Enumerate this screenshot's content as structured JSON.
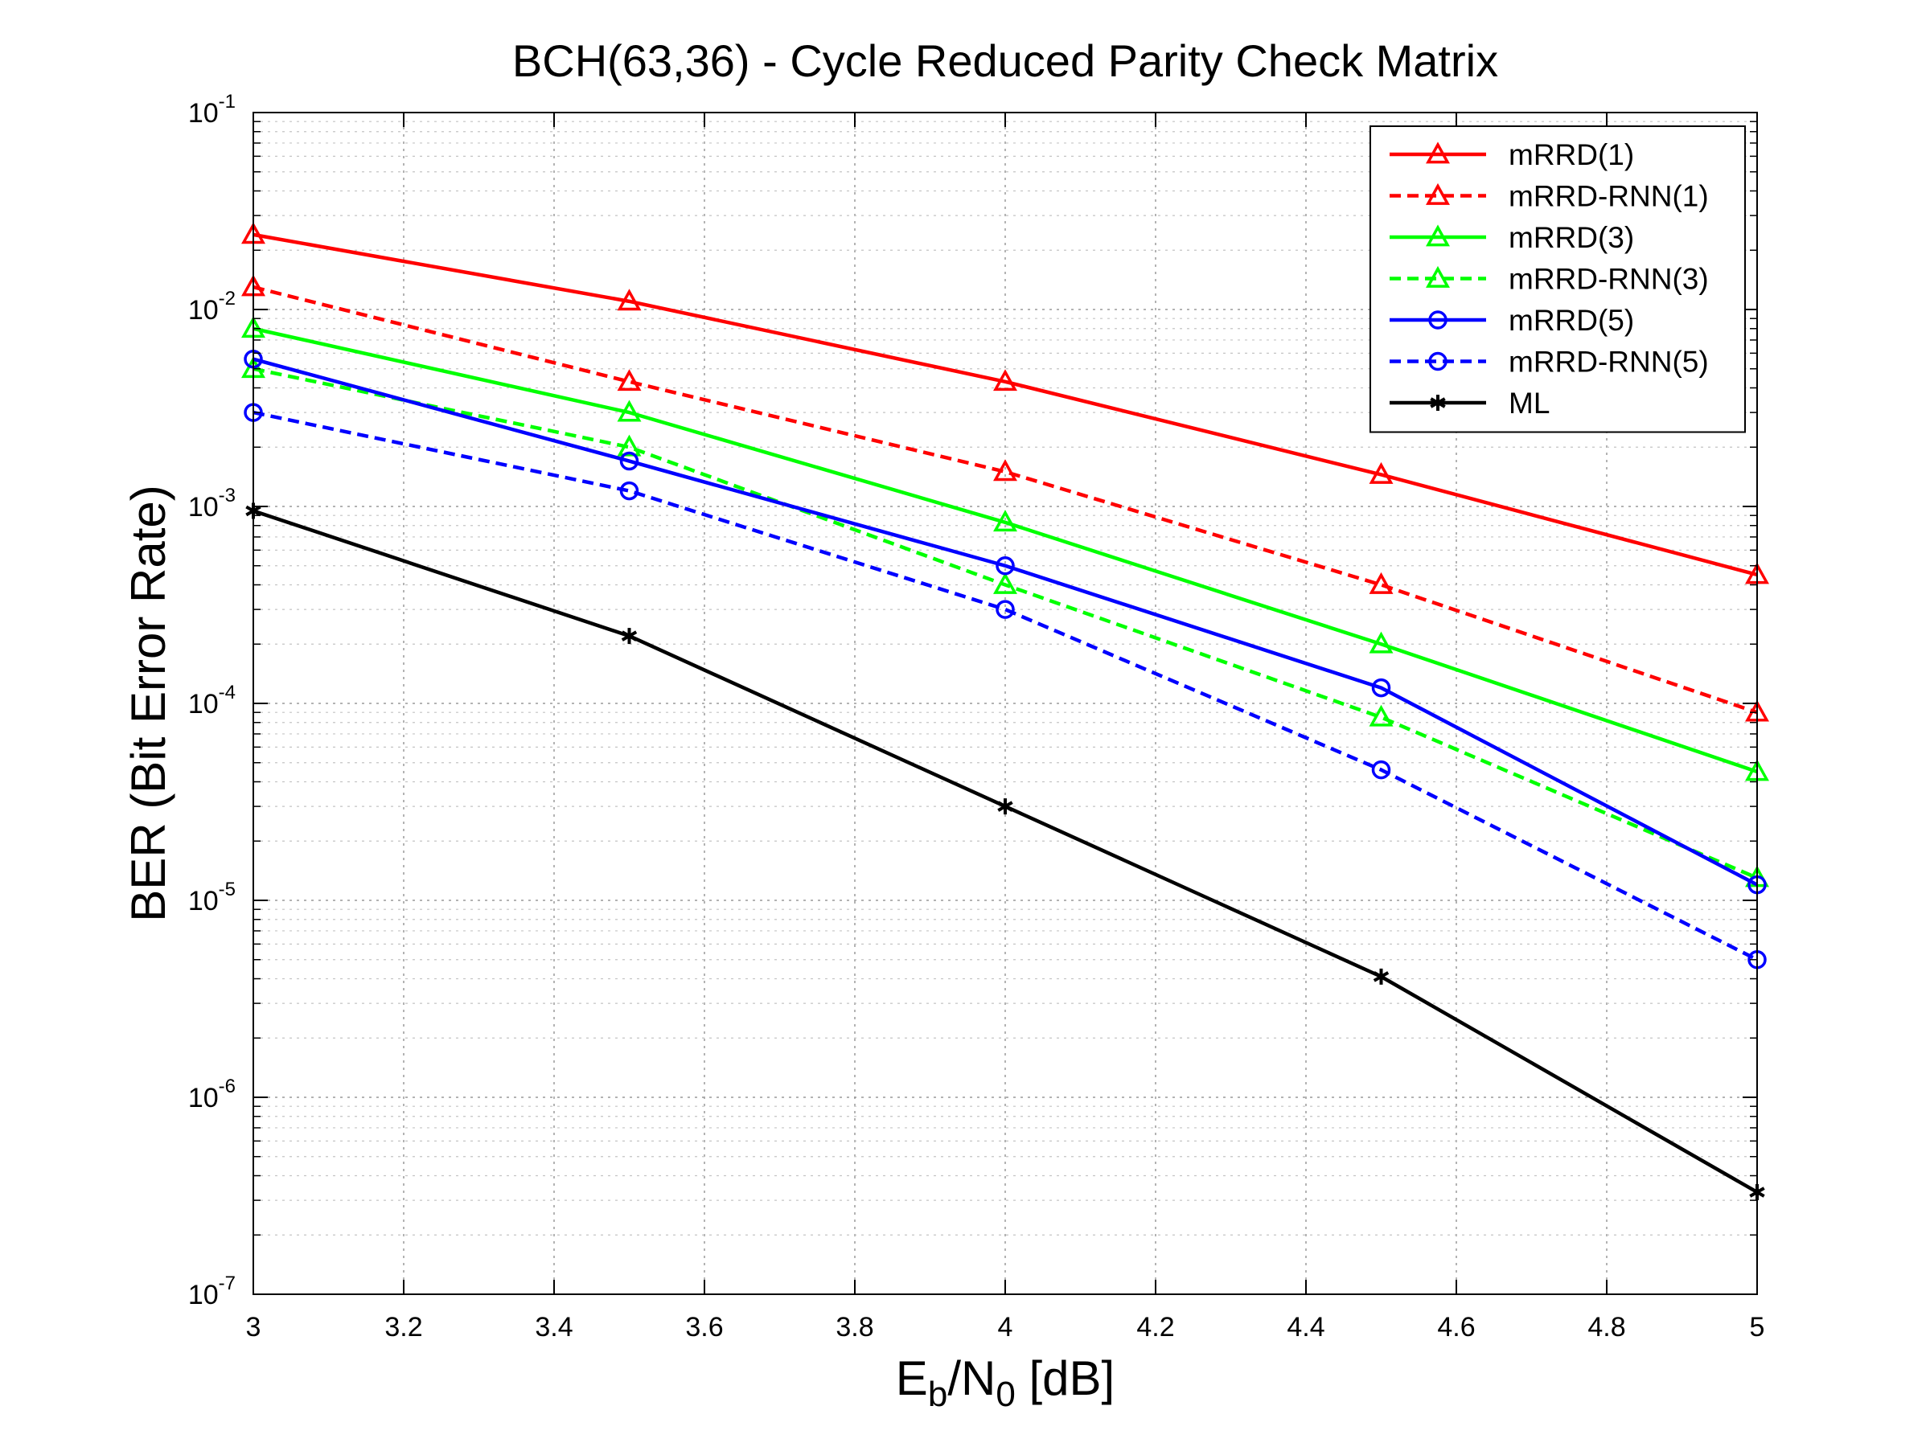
{
  "chart_data": {
    "type": "line",
    "title": "BCH(63,36) - Cycle Reduced Parity Check Matrix",
    "xlabel": "E_b/N_0 [dB]",
    "xlabel_parts": {
      "E": "E",
      "b": "b",
      "slash": "/N",
      "zero": "0",
      "rest": " [dB]"
    },
    "ylabel": "BER (Bit Error Rate)",
    "xlim": [
      3,
      5
    ],
    "ylim": [
      1e-07,
      0.1
    ],
    "yscale": "log",
    "grid": true,
    "legend_position": "top-right",
    "x_ticks": [
      "3",
      "3.2",
      "3.4",
      "3.6",
      "3.8",
      "4",
      "4.2",
      "4.4",
      "4.6",
      "4.8",
      "5"
    ],
    "y_ticks": [
      {
        "base": "10",
        "exp": "-7"
      },
      {
        "base": "10",
        "exp": "-6"
      },
      {
        "base": "10",
        "exp": "-5"
      },
      {
        "base": "10",
        "exp": "-4"
      },
      {
        "base": "10",
        "exp": "-3"
      },
      {
        "base": "10",
        "exp": "-2"
      },
      {
        "base": "10",
        "exp": "-1"
      }
    ],
    "x": [
      3,
      3.5,
      4,
      4.5,
      5
    ],
    "series": [
      {
        "name": "mRRD(1)",
        "color": "#ff0000",
        "style": "solid",
        "marker": "triangle",
        "values": [
          0.024,
          0.011,
          0.0043,
          0.00145,
          0.00045
        ]
      },
      {
        "name": "mRRD-RNN(1)",
        "color": "#ff0000",
        "style": "dashed",
        "marker": "triangle",
        "values": [
          0.013,
          0.0043,
          0.0015,
          0.0004,
          9e-05
        ]
      },
      {
        "name": "mRRD(3)",
        "color": "#00ff00",
        "style": "solid",
        "marker": "triangle",
        "values": [
          0.008,
          0.003,
          0.00083,
          0.0002,
          4.5e-05
        ]
      },
      {
        "name": "mRRD-RNN(3)",
        "color": "#00ff00",
        "style": "dashed",
        "marker": "triangle",
        "values": [
          0.005,
          0.002,
          0.0004,
          8.5e-05,
          1.3e-05
        ]
      },
      {
        "name": "mRRD(5)",
        "color": "#0000ff",
        "style": "solid",
        "marker": "circle",
        "values": [
          0.0056,
          0.0017,
          0.0005,
          0.00012,
          1.2e-05
        ]
      },
      {
        "name": "mRRD-RNN(5)",
        "color": "#0000ff",
        "style": "dashed",
        "marker": "circle",
        "values": [
          0.003,
          0.0012,
          0.0003,
          4.6e-05,
          5e-06
        ]
      },
      {
        "name": "ML",
        "color": "#000000",
        "style": "solid",
        "marker": "asterisk",
        "values": [
          0.00095,
          0.00022,
          3e-05,
          4.1e-06,
          3.3e-07
        ]
      }
    ]
  }
}
